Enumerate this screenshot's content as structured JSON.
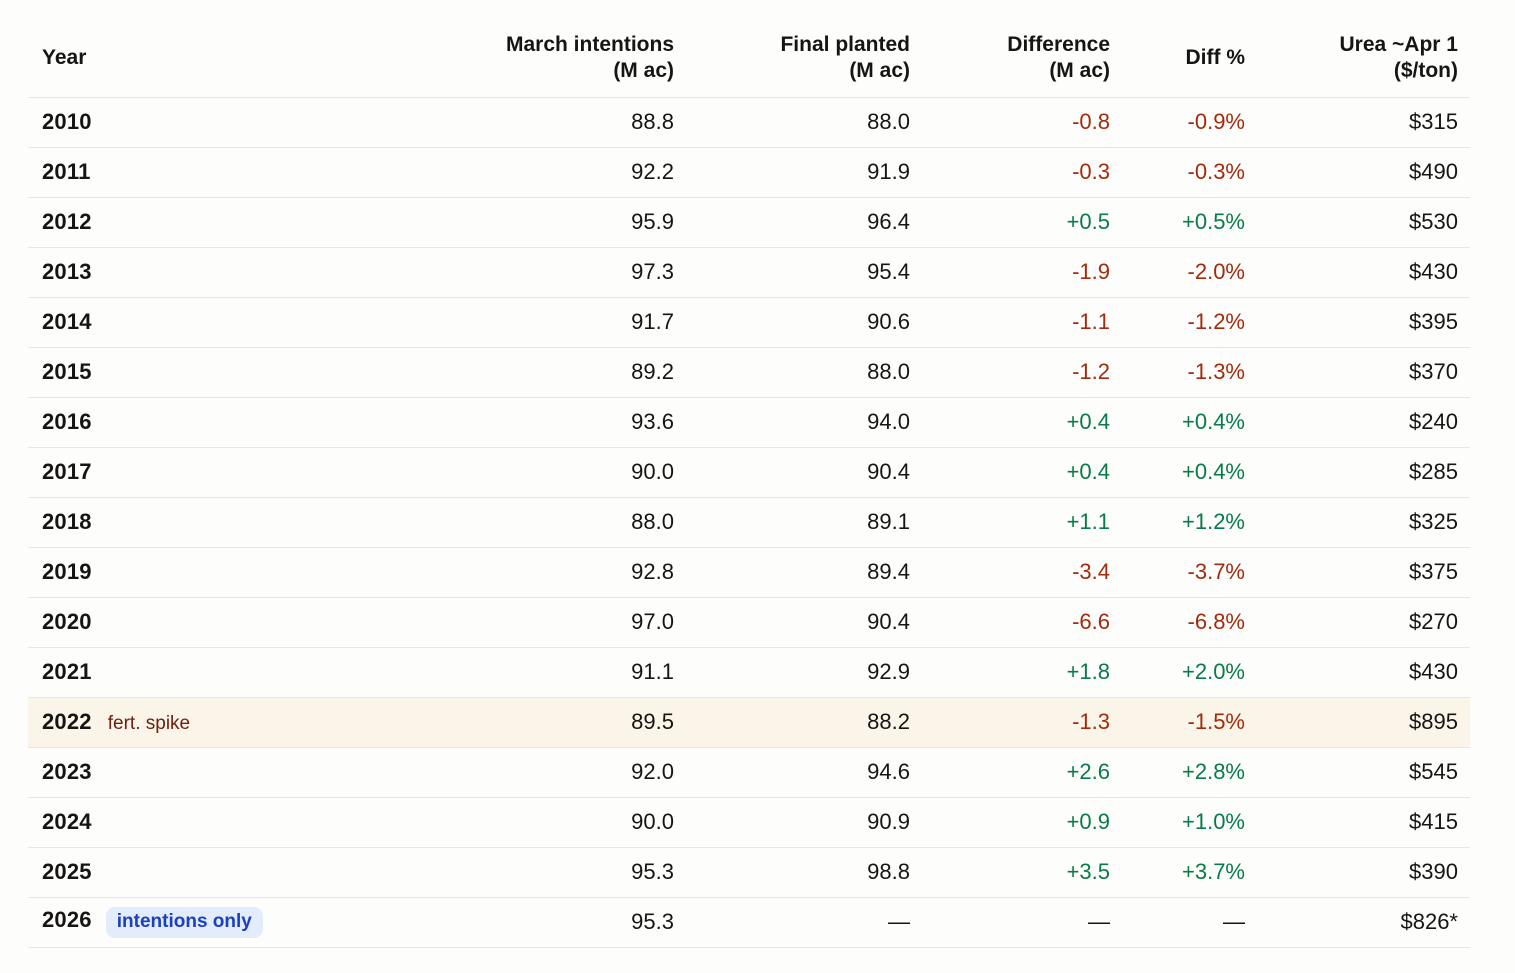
{
  "table": {
    "columns": [
      {
        "label": "Year",
        "sub": ""
      },
      {
        "label": "March intentions",
        "sub": "(M ac)"
      },
      {
        "label": "Final planted",
        "sub": "(M ac)"
      },
      {
        "label": "Difference",
        "sub": "(M ac)"
      },
      {
        "label": "Diff %",
        "sub": ""
      },
      {
        "label": "Urea ~Apr 1",
        "sub": "($/ton)"
      }
    ],
    "rows": [
      {
        "year": "2010",
        "march": "88.8",
        "final": "88.0",
        "diff": "-0.8",
        "diff_pct": "-0.9%",
        "urea": "$315",
        "trend": "neg"
      },
      {
        "year": "2011",
        "march": "92.2",
        "final": "91.9",
        "diff": "-0.3",
        "diff_pct": "-0.3%",
        "urea": "$490",
        "trend": "neg"
      },
      {
        "year": "2012",
        "march": "95.9",
        "final": "96.4",
        "diff": "+0.5",
        "diff_pct": "+0.5%",
        "urea": "$530",
        "trend": "pos"
      },
      {
        "year": "2013",
        "march": "97.3",
        "final": "95.4",
        "diff": "-1.9",
        "diff_pct": "-2.0%",
        "urea": "$430",
        "trend": "neg"
      },
      {
        "year": "2014",
        "march": "91.7",
        "final": "90.6",
        "diff": "-1.1",
        "diff_pct": "-1.2%",
        "urea": "$395",
        "trend": "neg"
      },
      {
        "year": "2015",
        "march": "89.2",
        "final": "88.0",
        "diff": "-1.2",
        "diff_pct": "-1.3%",
        "urea": "$370",
        "trend": "neg"
      },
      {
        "year": "2016",
        "march": "93.6",
        "final": "94.0",
        "diff": "+0.4",
        "diff_pct": "+0.4%",
        "urea": "$240",
        "trend": "pos"
      },
      {
        "year": "2017",
        "march": "90.0",
        "final": "90.4",
        "diff": "+0.4",
        "diff_pct": "+0.4%",
        "urea": "$285",
        "trend": "pos"
      },
      {
        "year": "2018",
        "march": "88.0",
        "final": "89.1",
        "diff": "+1.1",
        "diff_pct": "+1.2%",
        "urea": "$325",
        "trend": "pos"
      },
      {
        "year": "2019",
        "march": "92.8",
        "final": "89.4",
        "diff": "-3.4",
        "diff_pct": "-3.7%",
        "urea": "$375",
        "trend": "neg"
      },
      {
        "year": "2020",
        "march": "97.0",
        "final": "90.4",
        "diff": "-6.6",
        "diff_pct": "-6.8%",
        "urea": "$270",
        "trend": "neg"
      },
      {
        "year": "2021",
        "march": "91.1",
        "final": "92.9",
        "diff": "+1.8",
        "diff_pct": "+2.0%",
        "urea": "$430",
        "trend": "pos"
      },
      {
        "year": "2022",
        "tag": {
          "text": "fert. spike",
          "style": "plain"
        },
        "highlight": true,
        "march": "89.5",
        "final": "88.2",
        "diff": "-1.3",
        "diff_pct": "-1.5%",
        "urea": "$895",
        "trend": "neg"
      },
      {
        "year": "2023",
        "march": "92.0",
        "final": "94.6",
        "diff": "+2.6",
        "diff_pct": "+2.8%",
        "urea": "$545",
        "trend": "pos"
      },
      {
        "year": "2024",
        "march": "90.0",
        "final": "90.9",
        "diff": "+0.9",
        "diff_pct": "+1.0%",
        "urea": "$415",
        "trend": "pos"
      },
      {
        "year": "2025",
        "march": "95.3",
        "final": "98.8",
        "diff": "+3.5",
        "diff_pct": "+3.7%",
        "urea": "$390",
        "trend": "pos"
      },
      {
        "year": "2026",
        "tag": {
          "text": "intentions only",
          "style": "badge"
        },
        "march": "95.3",
        "final": "—",
        "diff": "—",
        "diff_pct": "—",
        "urea": "$826*",
        "trend": "none"
      }
    ]
  },
  "colors": {
    "positive": "#097a49",
    "negative": "#a32b0d",
    "highlight_row_bg": "#faf4e9",
    "fert_tag_text": "#6e2012",
    "badge_bg": "#e2ecfc",
    "badge_text": "#1b3fc0",
    "divider": "#e9e6e0",
    "text": "#171511",
    "page_bg": "#fdfdfb"
  }
}
